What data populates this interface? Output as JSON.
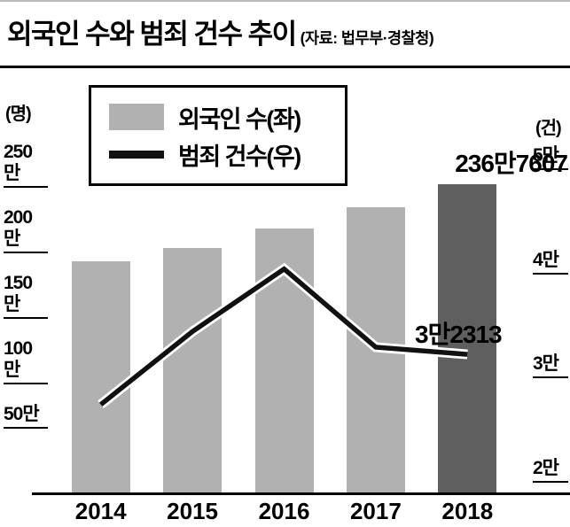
{
  "header": {
    "title": "외국인 수와 범죄 건수 추이",
    "source": "(자료: 법무부·경찰청)"
  },
  "legend": {
    "items": [
      {
        "label": "외국인 수(좌)",
        "swatch": "bar"
      },
      {
        "label": "범죄 건수(우)",
        "swatch": "line"
      }
    ]
  },
  "axes": {
    "left_unit": "(명)",
    "right_unit": "(건)",
    "left_tick_labels": [
      "250만",
      "200만",
      "150만",
      "100만",
      "50만"
    ],
    "right_tick_labels": [
      "5만",
      "4만",
      "3만",
      "2만"
    ]
  },
  "chart_data": {
    "type": "bar+line",
    "title": "외국인 수와 범죄 건수 추이",
    "categories": [
      "2014",
      "2015",
      "2016",
      "2017",
      "2018"
    ],
    "series": [
      {
        "name": "외국인 수(좌)",
        "type": "bar",
        "axis": "left",
        "values": [
          1780000,
          1880000,
          2030000,
          2190000,
          2367607
        ],
        "note": "2014-2017 values estimated from bar heights; 2018 labeled exactly"
      },
      {
        "name": "범죄 건수(우)",
        "type": "line",
        "axis": "right",
        "values": [
          27500,
          34500,
          40500,
          33000,
          32313
        ],
        "note": "2014-2017 values estimated from line position; 2018 labeled exactly"
      }
    ],
    "left_axis": {
      "unit": "명",
      "min": 0,
      "max": 2500000,
      "ticks": [
        2500000,
        2000000,
        1500000,
        1000000,
        500000
      ]
    },
    "right_axis": {
      "unit": "건",
      "min": 20000,
      "max": 50000,
      "ticks": [
        50000,
        40000,
        30000,
        20000
      ]
    },
    "annotations": [
      {
        "text": "236만7607",
        "series": "외국인 수(좌)",
        "category": "2018"
      },
      {
        "text": "3만2313",
        "series": "범죄 건수(우)",
        "category": "2018"
      }
    ],
    "legend_position": "top-left",
    "grid": false
  },
  "colors": {
    "bar_light": "#b1b1b1",
    "bar_dark": "#5f5f5f",
    "line": "#111111",
    "line_casing": "#ffffff",
    "text": "#000000"
  }
}
